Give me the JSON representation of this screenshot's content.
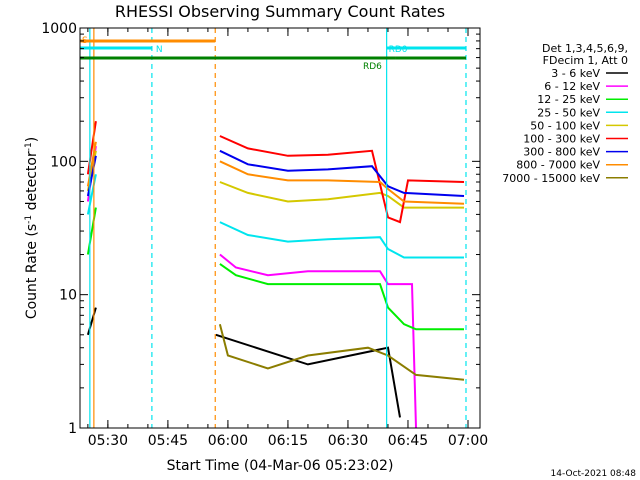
{
  "chart_data": {
    "type": "line",
    "title": "RHESSI Observing Summary Count Rates",
    "xlabel": "Start Time (04-Mar-06 05:23:02)",
    "ylabel_parts": [
      "Count Rate (s",
      "-1",
      " detector",
      "-1",
      ")"
    ],
    "y_scale": "log",
    "ylim": [
      1,
      1000
    ],
    "xlim": [
      "05:23:02",
      "07:03:00"
    ],
    "x_ticks": [
      "05:30",
      "05:45",
      "06:00",
      "06:15",
      "06:30",
      "06:45",
      "07:00"
    ],
    "y_ticks": [
      {
        "value": 1,
        "label": "1"
      },
      {
        "value": 10,
        "label": "10"
      },
      {
        "value": 100,
        "label": "100"
      },
      {
        "value": 1000,
        "label": "1000"
      }
    ],
    "legend_header": [
      "Det 1,3,4,5,6,9,",
      "FDecim 1, Att 0"
    ],
    "legend_position": "right",
    "series": [
      {
        "name": "3 - 6 keV",
        "color": "#000000",
        "segments": [
          [
            [
              "05:25:00",
              5
            ],
            [
              "05:27:00",
              8
            ]
          ],
          [
            [
              "05:57:00",
              5
            ],
            [
              "06:20:00",
              3
            ],
            [
              "06:40:00",
              4
            ],
            [
              "06:43:00",
              1.2
            ]
          ]
        ]
      },
      {
        "name": "6 - 12 keV",
        "color": "#ff00ff",
        "segments": [
          [
            [
              "05:25:00",
              50
            ],
            [
              "05:27:00",
              130
            ]
          ],
          [
            [
              "05:58:00",
              20
            ],
            [
              "06:02:00",
              16
            ],
            [
              "06:10:00",
              14
            ],
            [
              "06:20:00",
              15
            ],
            [
              "06:38:00",
              15
            ],
            [
              "06:40:00",
              12
            ],
            [
              "06:43:00",
              12
            ],
            [
              "06:46:00",
              12
            ],
            [
              "06:47:00",
              1
            ]
          ]
        ]
      },
      {
        "name": "12 - 25 keV",
        "color": "#00ee00",
        "segments": [
          [
            [
              "05:25:00",
              20
            ],
            [
              "05:27:00",
              45
            ]
          ],
          [
            [
              "05:58:00",
              17
            ],
            [
              "06:02:00",
              14
            ],
            [
              "06:10:00",
              12
            ],
            [
              "06:20:00",
              12
            ],
            [
              "06:38:00",
              12
            ],
            [
              "06:40:00",
              8
            ],
            [
              "06:44:00",
              6
            ],
            [
              "06:47:00",
              5.5
            ],
            [
              "06:59:00",
              5.5
            ]
          ]
        ]
      },
      {
        "name": "25 - 50 keV",
        "color": "#00e5ee",
        "segments": [
          [
            [
              "05:25:00",
              40
            ],
            [
              "05:27:00",
              80
            ]
          ],
          [
            [
              "05:58:00",
              35
            ],
            [
              "06:05:00",
              28
            ],
            [
              "06:15:00",
              25
            ],
            [
              "06:25:00",
              26
            ],
            [
              "06:38:00",
              27
            ],
            [
              "06:40:00",
              22
            ],
            [
              "06:44:00",
              19
            ],
            [
              "06:59:00",
              19
            ]
          ]
        ]
      },
      {
        "name": "50 - 100 keV",
        "color": "#d4c800",
        "segments": [
          [
            [
              "05:25:00",
              60
            ],
            [
              "05:27:00",
              120
            ]
          ],
          [
            [
              "05:58:00",
              70
            ],
            [
              "06:05:00",
              58
            ],
            [
              "06:15:00",
              50
            ],
            [
              "06:25:00",
              52
            ],
            [
              "06:38:00",
              58
            ],
            [
              "06:40:00",
              55
            ],
            [
              "06:44:00",
              45
            ],
            [
              "06:59:00",
              45
            ]
          ]
        ]
      },
      {
        "name": "100 - 300 keV",
        "color": "#ff0000",
        "segments": [
          [
            [
              "05:25:00",
              80
            ],
            [
              "05:27:00",
              200
            ]
          ],
          [
            [
              "05:58:00",
              155
            ],
            [
              "06:05:00",
              125
            ],
            [
              "06:15:00",
              110
            ],
            [
              "06:25:00",
              112
            ],
            [
              "06:36:00",
              120
            ],
            [
              "06:40:00",
              38
            ],
            [
              "06:43:00",
              35
            ],
            [
              "06:45:00",
              72
            ],
            [
              "06:59:00",
              70
            ]
          ]
        ]
      },
      {
        "name": "300 - 800 keV",
        "color": "#0000ee",
        "segments": [
          [
            [
              "05:25:00",
              55
            ],
            [
              "05:27:00",
              110
            ]
          ],
          [
            [
              "05:58:00",
              120
            ],
            [
              "06:05:00",
              95
            ],
            [
              "06:15:00",
              85
            ],
            [
              "06:25:00",
              87
            ],
            [
              "06:36:00",
              92
            ],
            [
              "06:40:00",
              65
            ],
            [
              "06:44:00",
              58
            ],
            [
              "06:59:00",
              55
            ]
          ]
        ]
      },
      {
        "name": "800 - 7000 keV",
        "color": "#ff8c00",
        "segments": [
          [
            [
              "05:25:00",
              65
            ],
            [
              "05:27:00",
              140
            ]
          ],
          [
            [
              "05:58:00",
              100
            ],
            [
              "06:05:00",
              80
            ],
            [
              "06:15:00",
              72
            ],
            [
              "06:25:00",
              72
            ],
            [
              "06:38:00",
              70
            ],
            [
              "06:40:00",
              62
            ],
            [
              "06:44:00",
              50
            ],
            [
              "06:59:00",
              48
            ]
          ]
        ]
      },
      {
        "name": "7000 - 15000 keV",
        "color": "#8b7d00",
        "segments": [
          [
            [
              "05:58:00",
              6
            ],
            [
              "06:00:00",
              3.5
            ],
            [
              "06:10:00",
              2.8
            ],
            [
              "06:20:00",
              3.5
            ],
            [
              "06:35:00",
              4
            ],
            [
              "06:40:00",
              3.5
            ],
            [
              "06:47:00",
              2.5
            ],
            [
              "06:59:00",
              2.3
            ]
          ]
        ]
      }
    ],
    "vertical_markers": [
      {
        "time": "05:25:30",
        "color": "#00e5ee",
        "style": "solid"
      },
      {
        "time": "05:26:30",
        "color": "#ff8c00",
        "style": "solid"
      },
      {
        "time": "05:41:00",
        "color": "#00e5ee",
        "style": "dashed"
      },
      {
        "time": "05:56:50",
        "color": "#ff8c00",
        "style": "dashed"
      },
      {
        "time": "06:39:40",
        "color": "#00e5ee",
        "style": "solid"
      },
      {
        "time": "06:59:30",
        "color": "#00e5ee",
        "style": "dashed"
      }
    ],
    "flag_bars": [
      {
        "label": "S",
        "color": "#ff8c00",
        "start": "05:23:02",
        "end": "05:25:30",
        "level": "top"
      },
      {
        "label": "",
        "color": "#ff8c00",
        "start": "05:23:02",
        "end": "05:56:50",
        "level": "top"
      },
      {
        "label": "N",
        "color": "#00e5ee",
        "start": "05:23:02",
        "end": "05:41:00",
        "level": "upper"
      },
      {
        "label": "RD0",
        "color": "#00e5ee",
        "start": "06:39:40",
        "end": "06:59:30",
        "level": "upper"
      },
      {
        "label": "RD6",
        "color": "#008000",
        "start": "05:23:02",
        "end": "06:42:00",
        "level": "mid"
      },
      {
        "label": "",
        "color": "#008000",
        "start": "06:42:00",
        "end": "06:59:30",
        "level": "mid"
      }
    ]
  },
  "footer_timestamp": "14-Oct-2021 08:48"
}
